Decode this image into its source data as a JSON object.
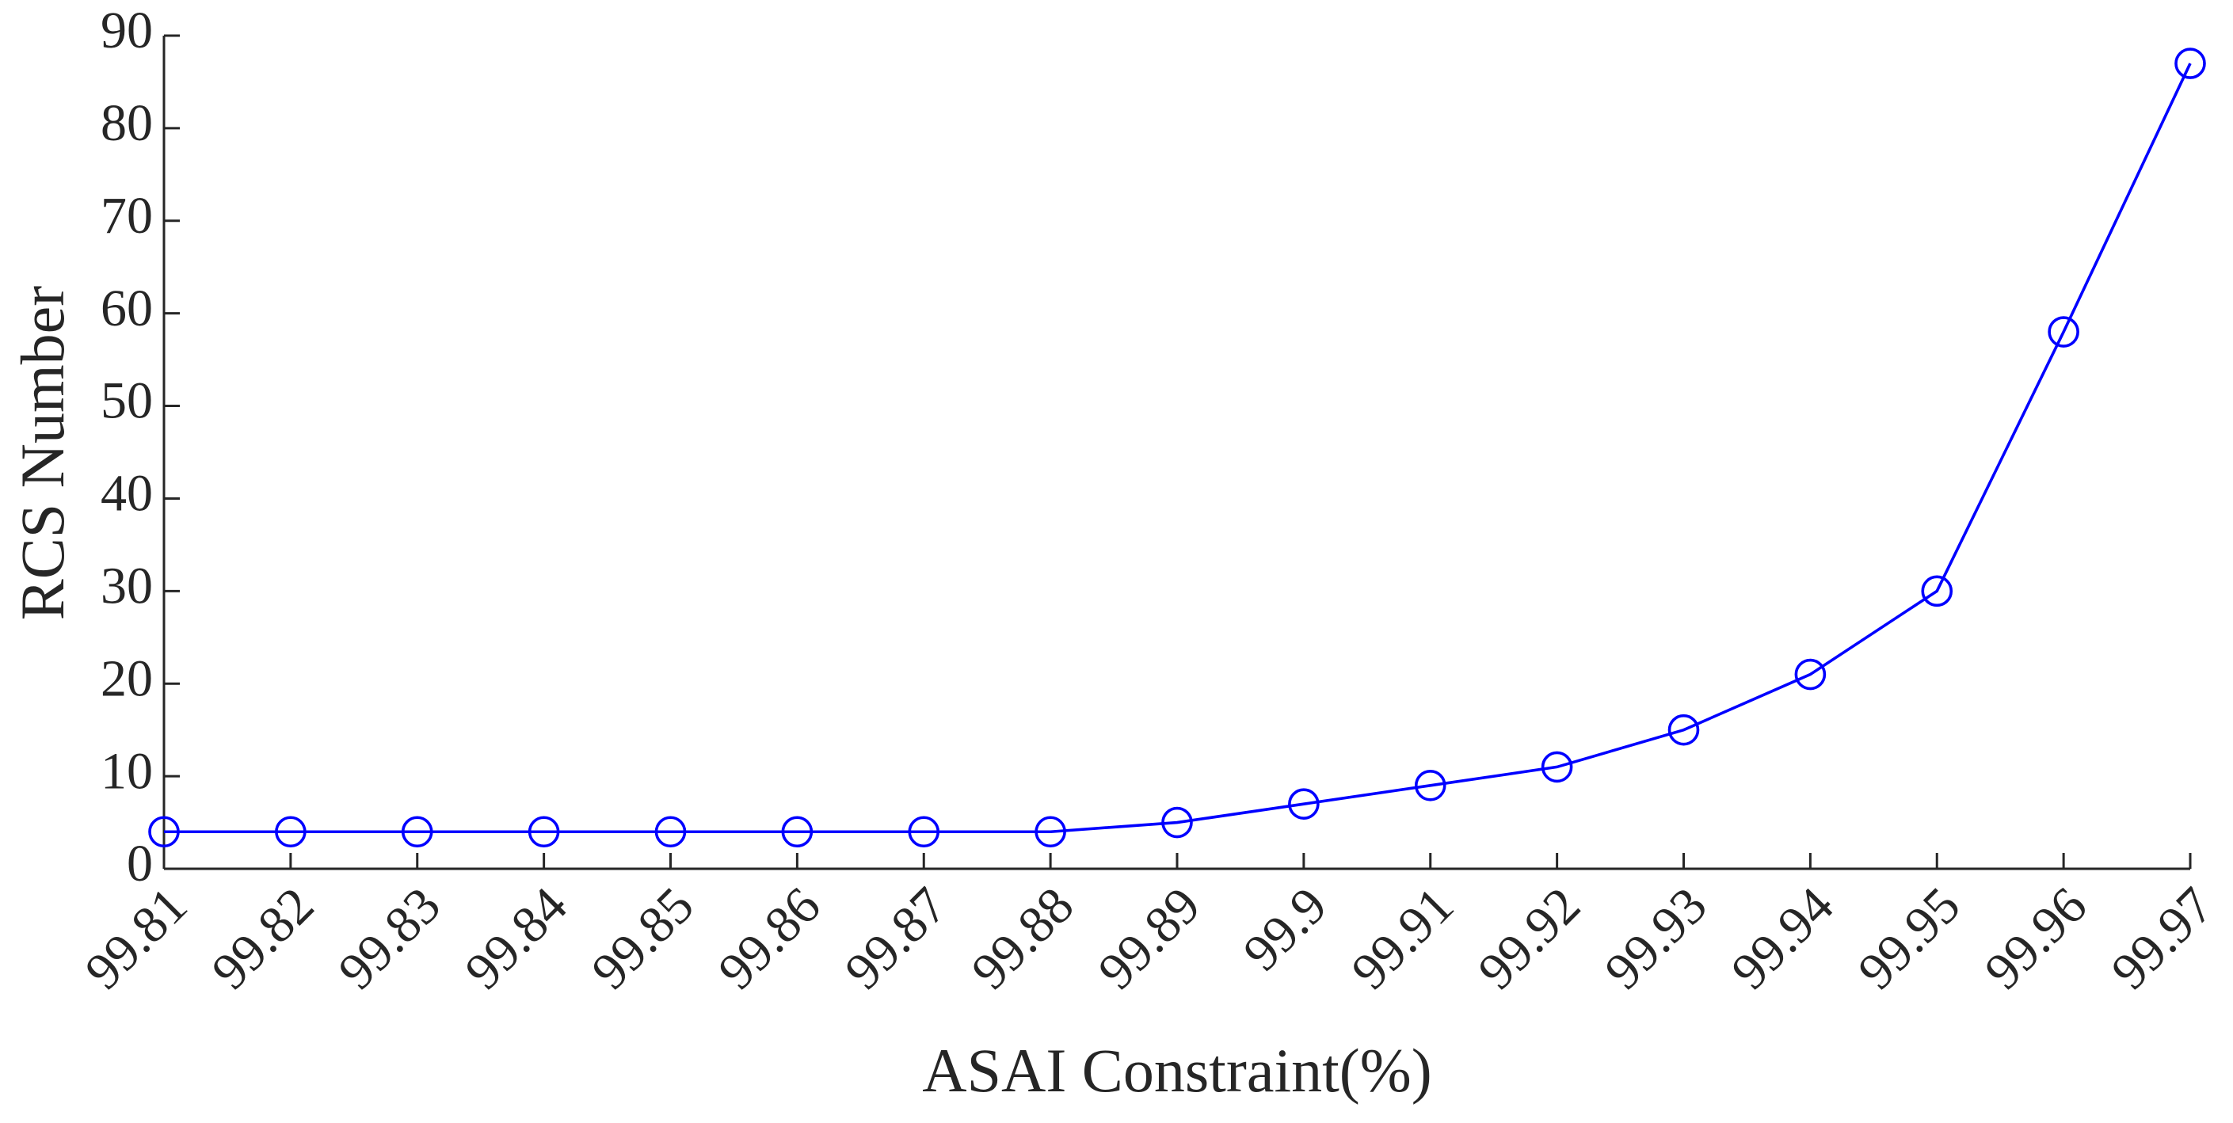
{
  "chart_data": {
    "type": "line",
    "x_label": "ASAI Constraint(%)",
    "y_label": "RCS Number",
    "x": [
      99.81,
      99.82,
      99.83,
      99.84,
      99.85,
      99.86,
      99.87,
      99.88,
      99.89,
      99.9,
      99.91,
      99.92,
      99.93,
      99.94,
      99.95,
      99.96,
      99.97
    ],
    "values": [
      4,
      4,
      4,
      4,
      4,
      4,
      4,
      4,
      5,
      7,
      9,
      11,
      15,
      21,
      30,
      58,
      87
    ],
    "color": "#0000ff",
    "marker": "circle",
    "xlim": [
      99.81,
      99.97
    ],
    "xticks": [
      99.81,
      99.82,
      99.83,
      99.84,
      99.85,
      99.86,
      99.87,
      99.88,
      99.89,
      99.9,
      99.91,
      99.92,
      99.93,
      99.94,
      99.95,
      99.96,
      99.97
    ],
    "ylim": [
      0,
      90
    ],
    "yticks": [
      0,
      10,
      20,
      30,
      40,
      50,
      60,
      70,
      80,
      90
    ],
    "grid": false
  }
}
